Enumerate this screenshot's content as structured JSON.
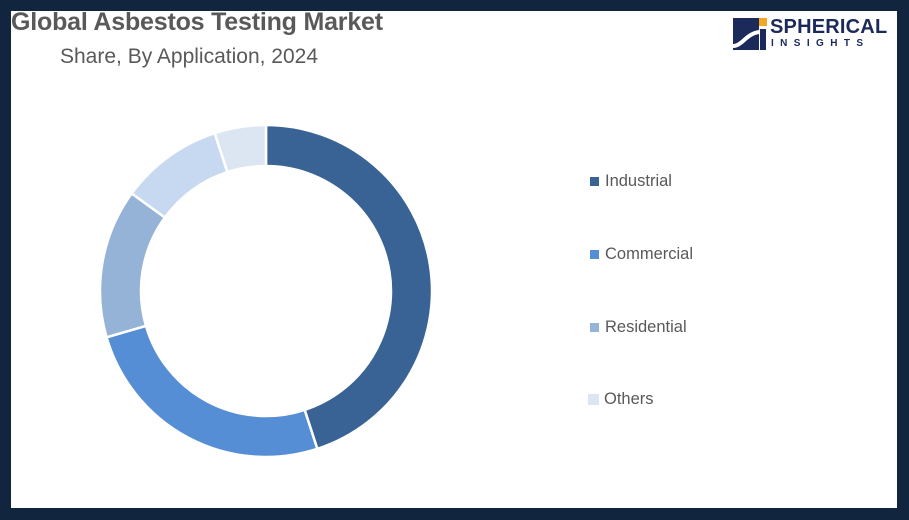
{
  "header": {
    "title": "Global Asbestos Testing Market",
    "subtitle": "Share, By Application, 2024"
  },
  "logo": {
    "name": "SPHERICAL",
    "tagline": "INSIGHTS",
    "colors": {
      "navy": "#1b2a5a",
      "accent": "#f5a623"
    }
  },
  "frame": {
    "border_color": "#12253f",
    "background": "#ffffff"
  },
  "chart_data": {
    "type": "pie",
    "variant": "donut",
    "title": "Global Asbestos Testing Market",
    "subtitle": "Share, By Application, 2024",
    "categories": [
      "Industrial",
      "Commercial",
      "Residential",
      "",
      "Others"
    ],
    "values": [
      45,
      25.5,
      14.5,
      10,
      5
    ],
    "colors": [
      "#386394",
      "#558ed5",
      "#95b3d7",
      "#c6d9f1",
      "#dce6f2"
    ],
    "legend": {
      "position": "right",
      "entries": [
        {
          "label": "Industrial",
          "color": "#386394"
        },
        {
          "label": "Commercial",
          "color": "#558ed5"
        },
        {
          "label": "Residential",
          "color": "#95b3d7"
        },
        {
          "label": "Others",
          "color": "#dce6f2"
        }
      ]
    },
    "start_angle_deg": 0,
    "direction": "clockwise",
    "data_labels": false,
    "xlabel": "",
    "ylabel": ""
  }
}
